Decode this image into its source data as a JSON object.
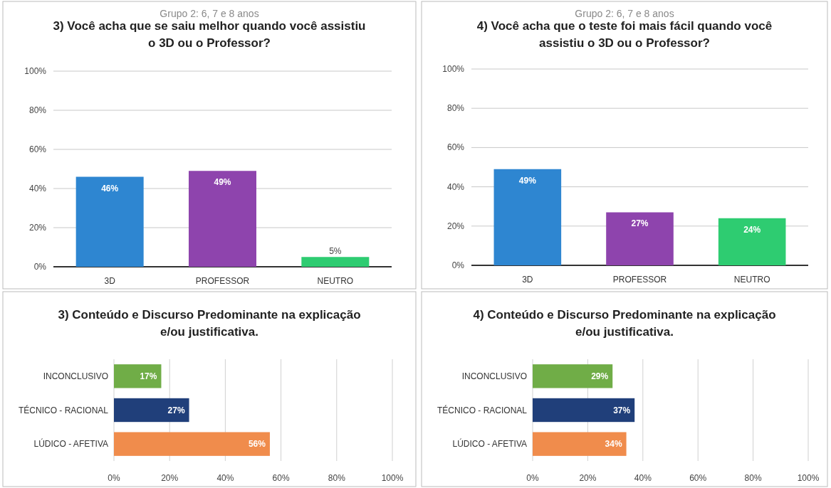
{
  "chart_data": [
    {
      "type": "bar",
      "subtitle": "Grupo 2: 6, 7 e 8 anos",
      "title": "3) Você acha que se saiu melhor quando você assistiu o 3D ou o Professor?",
      "categories": [
        "3D",
        "PROFESSOR",
        "NEUTRO"
      ],
      "values": [
        46,
        49,
        5
      ],
      "colors": [
        "#2e86d1",
        "#8e44ad",
        "#2ecc71"
      ],
      "value_labels": [
        "46%",
        "49%",
        "5%"
      ],
      "ylim": [
        0,
        100
      ],
      "yticks": [
        {
          "value": 0,
          "label": "0%"
        },
        {
          "value": 20,
          "label": "20%"
        },
        {
          "value": 40,
          "label": "40%"
        },
        {
          "value": 60,
          "label": "60%"
        },
        {
          "value": 80,
          "label": "80%"
        },
        {
          "value": 100,
          "label": "100%"
        }
      ],
      "grid": "y"
    },
    {
      "type": "bar",
      "subtitle": "Grupo 2: 6, 7 e 8 anos",
      "title": "4) Você acha que o teste foi mais fácil quando você assistiu o 3D ou o Professor?",
      "categories": [
        "3D",
        "PROFESSOR",
        "NEUTRO"
      ],
      "values": [
        49,
        27,
        24
      ],
      "colors": [
        "#2e86d1",
        "#8e44ad",
        "#2ecc71"
      ],
      "value_labels": [
        "49%",
        "27%",
        "24%"
      ],
      "ylim": [
        0,
        100
      ],
      "yticks": [
        {
          "value": 0,
          "label": "0%"
        },
        {
          "value": 20,
          "label": "20%"
        },
        {
          "value": 40,
          "label": "40%"
        },
        {
          "value": 60,
          "label": "60%"
        },
        {
          "value": 80,
          "label": "80%"
        },
        {
          "value": 100,
          "label": "100%"
        }
      ],
      "grid": "y"
    },
    {
      "type": "bar",
      "orientation": "horizontal",
      "title": "3) Conteúdo e Discurso Predominante na explicação e/ou justificativa.",
      "categories": [
        "INCONCLUSIVO",
        "TÉCNICO - RACIONAL",
        "LÚDICO - AFETIVA"
      ],
      "values": [
        17,
        27,
        56
      ],
      "colors": [
        "#70ad47",
        "#203f7a",
        "#f08c4c"
      ],
      "value_labels": [
        "17%",
        "27%",
        "56%"
      ],
      "xlim": [
        0,
        100
      ],
      "xticks": [
        {
          "value": 0,
          "label": "0%"
        },
        {
          "value": 20,
          "label": "20%"
        },
        {
          "value": 40,
          "label": "40%"
        },
        {
          "value": 60,
          "label": "60%"
        },
        {
          "value": 80,
          "label": "80%"
        },
        {
          "value": 100,
          "label": "100%"
        }
      ],
      "grid": "x"
    },
    {
      "type": "bar",
      "orientation": "horizontal",
      "title": "4) Conteúdo e Discurso Predominante na explicação e/ou justificativa.",
      "categories": [
        "INCONCLUSIVO",
        "TÉCNICO - RACIONAL",
        "LÚDICO - AFETIVA"
      ],
      "values": [
        29,
        37,
        34
      ],
      "colors": [
        "#70ad47",
        "#203f7a",
        "#f08c4c"
      ],
      "value_labels": [
        "29%",
        "37%",
        "34%"
      ],
      "xlim": [
        0,
        100
      ],
      "xticks": [
        {
          "value": 0,
          "label": "0%"
        },
        {
          "value": 20,
          "label": "20%"
        },
        {
          "value": 40,
          "label": "40%"
        },
        {
          "value": 60,
          "label": "60%"
        },
        {
          "value": 80,
          "label": "80%"
        },
        {
          "value": 100,
          "label": "100%"
        }
      ],
      "grid": "x"
    }
  ]
}
